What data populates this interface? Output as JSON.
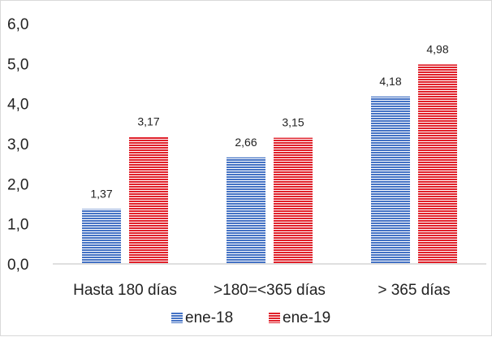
{
  "chart_data": {
    "type": "bar",
    "title": "",
    "xlabel": "",
    "ylabel": "",
    "categories": [
      "Hasta 180 días",
      ">180=<365 días",
      "> 365 días"
    ],
    "series": [
      {
        "name": "ene-18",
        "values": [
          1.37,
          2.66,
          4.18
        ],
        "labels": [
          "1,37",
          "2,66",
          "4,18"
        ],
        "color": "#4472c4"
      },
      {
        "name": "ene-19",
        "values": [
          3.17,
          3.15,
          4.98
        ],
        "labels": [
          "3,17",
          "3,15",
          "4,98"
        ],
        "color": "#e0202a"
      }
    ],
    "ylim": [
      0,
      6
    ],
    "yticks": [
      0,
      1,
      2,
      3,
      4,
      5,
      6
    ],
    "ytick_labels": [
      "0,0",
      "1,0",
      "2,0",
      "3,0",
      "4,0",
      "5,0",
      "6,0"
    ],
    "grid": false,
    "legend_position": "bottom",
    "bar_pattern": "horizontal-stripes"
  }
}
